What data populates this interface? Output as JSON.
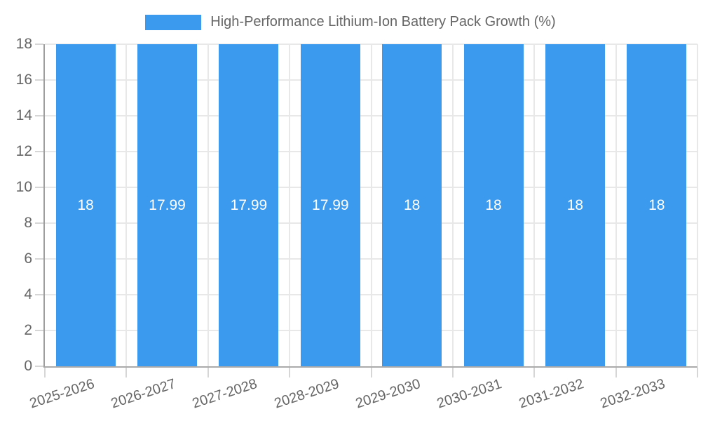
{
  "chart_data": {
    "type": "bar",
    "title": "High-Performance Lithium-Ion Battery Pack Growth (%)",
    "xlabel": "",
    "ylabel": "",
    "categories": [
      "2025-2026",
      "2026-2027",
      "2027-2028",
      "2028-2029",
      "2029-2030",
      "2030-2031",
      "2031-2032",
      "2032-2033"
    ],
    "values": [
      18,
      17.99,
      17.99,
      17.99,
      18,
      18,
      18,
      18
    ],
    "value_labels": [
      "18",
      "17.99",
      "17.99",
      "17.99",
      "18",
      "18",
      "18",
      "18"
    ],
    "ylim": [
      0,
      18
    ],
    "ytick_step": 2,
    "grid": true,
    "legend_position": "top-center"
  },
  "colors": {
    "bar": "#3b9aee",
    "grid": "#e8e8e8",
    "axis": "#9e9e9e",
    "tick": "#d6d6d6",
    "text": "#666666",
    "bar_label": "#ffffff",
    "background": "#ffffff"
  }
}
